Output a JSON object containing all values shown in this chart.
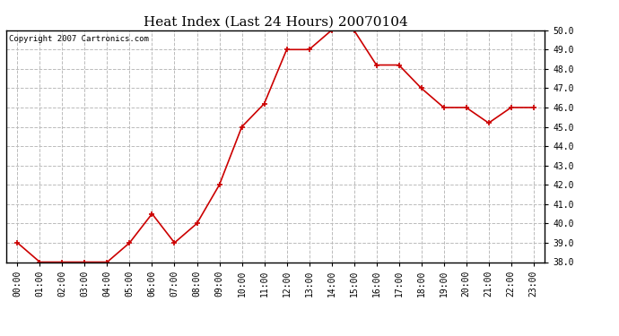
{
  "title": "Heat Index (Last 24 Hours) 20070104",
  "copyright_text": "Copyright 2007 Cartronics.com",
  "x_labels": [
    "00:00",
    "01:00",
    "02:00",
    "03:00",
    "04:00",
    "05:00",
    "06:00",
    "07:00",
    "08:00",
    "09:00",
    "10:00",
    "11:00",
    "12:00",
    "13:00",
    "14:00",
    "15:00",
    "16:00",
    "17:00",
    "18:00",
    "19:00",
    "20:00",
    "21:00",
    "22:00",
    "23:00"
  ],
  "y_values": [
    39.0,
    38.0,
    38.0,
    38.0,
    38.0,
    39.0,
    40.5,
    39.0,
    40.0,
    42.0,
    45.0,
    46.2,
    49.0,
    49.0,
    50.0,
    50.0,
    48.2,
    48.2,
    47.0,
    46.0,
    46.0,
    45.2,
    46.0,
    46.0
  ],
  "ylim_min": 38.0,
  "ylim_max": 50.0,
  "y_ticks": [
    38.0,
    39.0,
    40.0,
    41.0,
    42.0,
    43.0,
    44.0,
    45.0,
    46.0,
    47.0,
    48.0,
    49.0,
    50.0
  ],
  "line_color": "#cc0000",
  "marker_style": "+",
  "marker_size": 5,
  "marker_color": "#cc0000",
  "bg_color": "#ffffff",
  "plot_bg_color": "#ffffff",
  "grid_color": "#bbbbbb",
  "grid_style": "--",
  "title_fontsize": 11,
  "tick_fontsize": 7,
  "copyright_fontsize": 6.5
}
